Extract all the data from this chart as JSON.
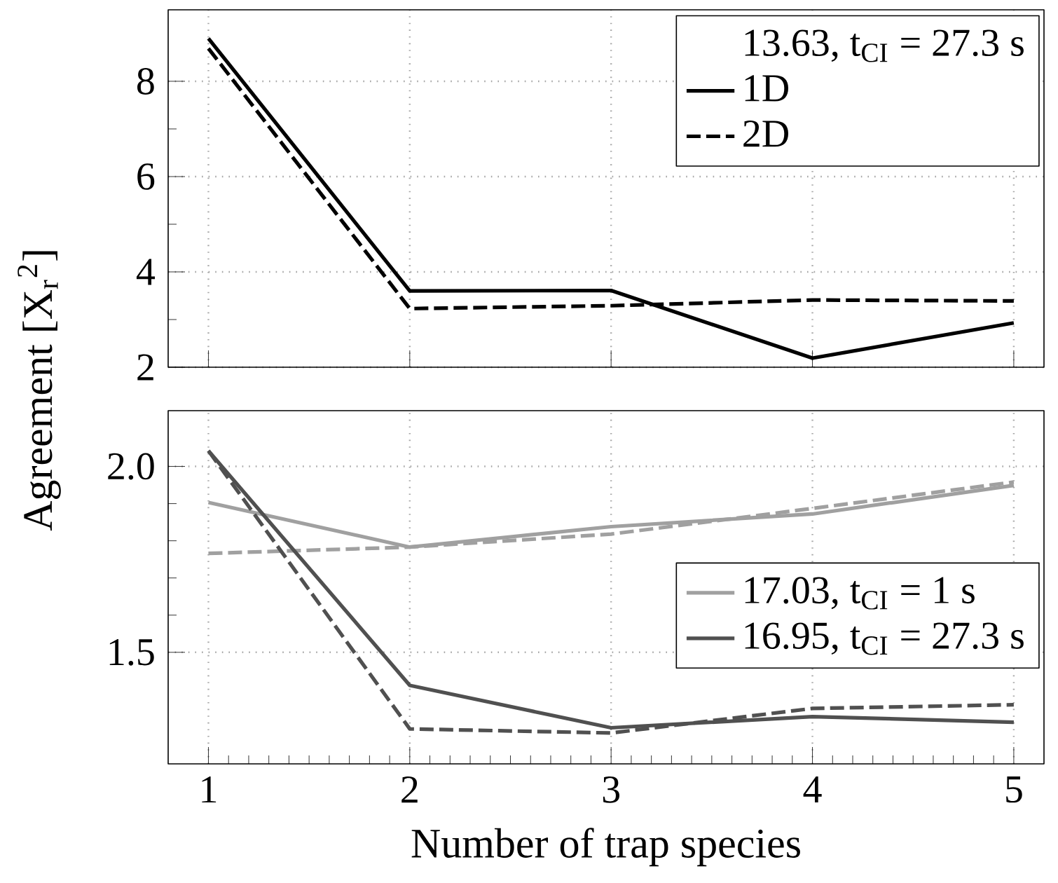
{
  "chart_data": [
    {
      "type": "line",
      "x": [
        1,
        2,
        3,
        4,
        5
      ],
      "ylabel": "Agreement [X$_{r}$$^{2}$]",
      "xlim": [
        0.8,
        5.15
      ],
      "xticks": [
        1,
        2,
        3,
        4,
        5
      ],
      "ylim": [
        2,
        9.5
      ],
      "yticks": [
        2,
        4,
        6,
        8
      ],
      "grid": true,
      "legend": "top right",
      "legend_title": "13.63, t$_{CI}$ = 27.3 s",
      "tick_labels": "y",
      "series": [
        {
          "name": "1D",
          "color": "#000000",
          "line_style": "solid",
          "values": [
            8.9,
            3.6,
            3.61,
            2.19,
            2.93
          ]
        },
        {
          "name": "2D",
          "color": "#000000",
          "line_style": "dashed",
          "values": [
            8.69,
            3.23,
            3.29,
            3.41,
            3.39
          ]
        }
      ]
    },
    {
      "type": "line",
      "x": [
        1,
        2,
        3,
        4,
        5
      ],
      "xlabel": "Number of trap species",
      "xlim": [
        0.8,
        5.15
      ],
      "xticks": [
        1,
        2,
        3,
        4,
        5
      ],
      "ylim": [
        1.2,
        2.15
      ],
      "yticks": [
        {
          "value": 1.5,
          "label": "1.5"
        },
        {
          "value": 2.0,
          "label": "2.0"
        }
      ],
      "grid": true,
      "legend": "right",
      "series": [
        {
          "name": "17.03, t$_{CI}$ = 1 s",
          "color": "#a0a0a0",
          "line_style": "solid",
          "values": [
            1.903,
            1.783,
            1.838,
            1.872,
            1.949
          ]
        },
        {
          "color": "#a0a0a0",
          "line_style": "dashed",
          "values": [
            1.766,
            1.783,
            1.818,
            1.887,
            1.958
          ]
        },
        {
          "name": "16.95, t$_{CI}$ = 27.3 s",
          "color": "#505050",
          "line_style": "solid",
          "values": [
            2.042,
            1.411,
            1.297,
            1.327,
            1.312
          ]
        },
        {
          "color": "#505050",
          "line_style": "dashed",
          "values": [
            2.042,
            1.294,
            1.283,
            1.349,
            1.359
          ]
        }
      ]
    }
  ]
}
